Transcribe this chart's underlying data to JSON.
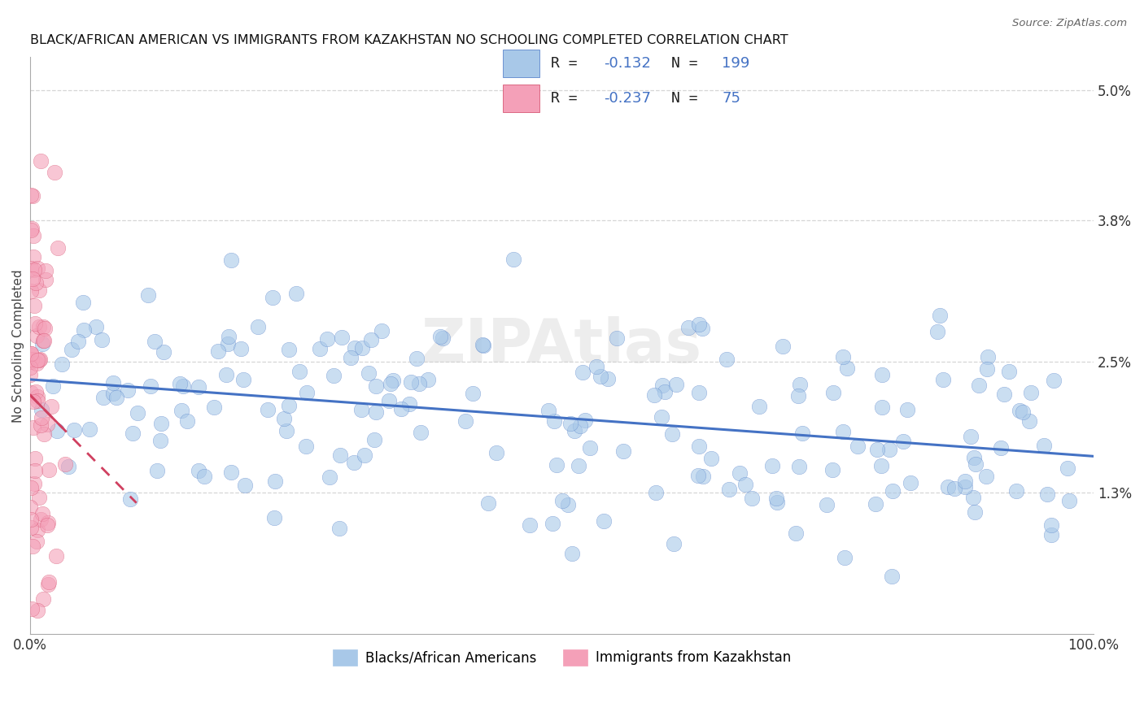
{
  "title": "BLACK/AFRICAN AMERICAN VS IMMIGRANTS FROM KAZAKHSTAN NO SCHOOLING COMPLETED CORRELATION CHART",
  "source": "Source: ZipAtlas.com",
  "ylabel": "No Schooling Completed",
  "xlabel": "",
  "xlim": [
    0,
    100
  ],
  "ylim_bottom": 0.0,
  "ylim_top": 5.2,
  "ytick_vals": [
    1.3,
    2.5,
    3.8,
    5.0
  ],
  "ytick_labels": [
    "1.3%",
    "2.5%",
    "3.8%",
    "5.0%"
  ],
  "xtick_labels": [
    "0.0%",
    "100.0%"
  ],
  "blue_color": "#a8c8e8",
  "pink_color": "#f4a0b8",
  "blue_line_color": "#4472c4",
  "pink_line_color": "#d04060",
  "R_blue": -0.132,
  "N_blue": 199,
  "R_pink": -0.237,
  "N_pink": 75,
  "watermark": "ZIPAtlas",
  "legend_labels": [
    "Blacks/African Americans",
    "Immigrants from Kazakhstan"
  ],
  "background_color": "#ffffff",
  "grid_color": "#cccccc",
  "title_fontsize": 11.5,
  "axis_fontsize": 11,
  "legend_fontsize": 12,
  "legend_text_color": "#4472c4",
  "blue_scatter_alpha": 0.6,
  "pink_scatter_alpha": 0.6,
  "dot_size": 180
}
